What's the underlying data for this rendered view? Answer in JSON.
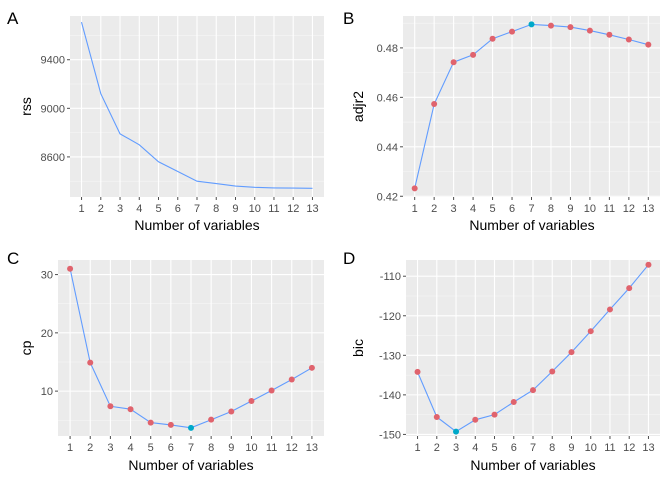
{
  "chart_data": [
    {
      "panel": "A",
      "type": "line",
      "xlabel": "Number of variables",
      "ylabel": "rss",
      "x": [
        1,
        2,
        3,
        4,
        5,
        6,
        7,
        8,
        9,
        10,
        11,
        12,
        13
      ],
      "y": [
        9710,
        9120,
        8790,
        8700,
        8560,
        8480,
        8400,
        8380,
        8360,
        8350,
        8345,
        8343,
        8342
      ],
      "ylim": [
        8270,
        9760
      ],
      "yticks": [
        8600,
        9000,
        9400
      ],
      "ytick_labels": [
        "8600",
        "9000",
        "9400"
      ],
      "points": false,
      "grid": true
    },
    {
      "panel": "B",
      "type": "line",
      "xlabel": "Number of variables",
      "ylabel": "adjr2",
      "x": [
        1,
        2,
        3,
        4,
        5,
        6,
        7,
        8,
        9,
        10,
        11,
        12,
        13
      ],
      "y": [
        0.4232,
        0.4573,
        0.4742,
        0.4772,
        0.4837,
        0.4866,
        0.4895,
        0.489,
        0.4884,
        0.487,
        0.4853,
        0.4834,
        0.4813
      ],
      "ylim": [
        0.4197,
        0.4929
      ],
      "yticks": [
        0.42,
        0.44,
        0.46,
        0.48
      ],
      "ytick_labels": [
        "0.42",
        "0.44",
        "0.46",
        "0.48"
      ],
      "points": true,
      "highlight_index": 6,
      "grid": true
    },
    {
      "panel": "C",
      "type": "line",
      "xlabel": "Number of variables",
      "ylabel": "cp",
      "x": [
        1,
        2,
        3,
        4,
        5,
        6,
        7,
        8,
        9,
        10,
        11,
        12,
        13
      ],
      "y": [
        31.0,
        14.9,
        7.4,
        6.9,
        4.6,
        4.2,
        3.7,
        5.1,
        6.5,
        8.3,
        10.1,
        12.0,
        14.0
      ],
      "ylim": [
        2.3,
        32.5
      ],
      "yticks": [
        10,
        20,
        30
      ],
      "ytick_labels": [
        "10",
        "20",
        "30"
      ],
      "points": true,
      "highlight_index": 6,
      "grid": true
    },
    {
      "panel": "D",
      "type": "line",
      "xlabel": "Number of variables",
      "ylabel": "bic",
      "x": [
        1,
        2,
        3,
        4,
        5,
        6,
        7,
        8,
        9,
        10,
        11,
        12,
        13
      ],
      "y": [
        -134.2,
        -145.6,
        -149.3,
        -146.3,
        -145.0,
        -141.8,
        -138.8,
        -134.1,
        -129.2,
        -123.9,
        -118.4,
        -113.0,
        -107.1
      ],
      "ylim": [
        -150.4,
        -105.9
      ],
      "yticks": [
        -150,
        -140,
        -130,
        -120,
        -110
      ],
      "ytick_labels": [
        "-150",
        "-140",
        "-130",
        "-120",
        "-110"
      ],
      "points": true,
      "highlight_index": 2,
      "grid": true
    }
  ],
  "panel_tags": [
    "A",
    "B",
    "C",
    "D"
  ],
  "style": {
    "panel_bg": "#ebebeb",
    "grid_major": "#ffffff",
    "line_color": "#619cff",
    "point_color": "#e0636d",
    "highlight_color": "#00a9c9",
    "tick_color": "#4d4d4d"
  }
}
